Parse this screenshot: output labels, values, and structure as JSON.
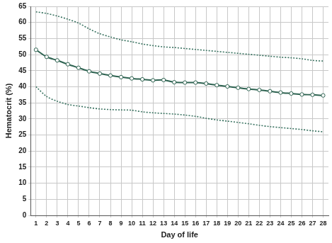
{
  "chart_data": {
    "type": "line",
    "x_label": "Day of life",
    "y_label": "Hematocrit (%)",
    "x": [
      1,
      2,
      3,
      4,
      5,
      6,
      7,
      8,
      9,
      10,
      11,
      12,
      13,
      14,
      15,
      16,
      17,
      18,
      19,
      20,
      21,
      22,
      23,
      24,
      25,
      26,
      27,
      28
    ],
    "series": [
      {
        "color": "#2e6351",
        "marker": "circle",
        "line_style": "solid",
        "values": [
          51.5,
          49.3,
          48.2,
          47.0,
          45.9,
          44.8,
          44.1,
          43.5,
          43.0,
          42.6,
          42.3,
          42.0,
          42.1,
          41.4,
          41.3,
          41.3,
          41.0,
          40.5,
          40.1,
          39.7,
          39.3,
          39.0,
          38.6,
          38.2,
          37.9,
          37.6,
          37.5,
          37.3
        ]
      },
      {
        "color": "#3a7361",
        "marker": "none",
        "line_style": "dotted",
        "values": [
          63.3,
          62.8,
          62.0,
          61.0,
          59.8,
          58.0,
          56.5,
          55.5,
          54.6,
          54.0,
          53.3,
          52.8,
          52.4,
          52.2,
          51.9,
          51.6,
          51.3,
          51.0,
          50.7,
          50.4,
          50.1,
          49.8,
          49.5,
          49.2,
          49.0,
          48.7,
          48.2,
          48.0
        ]
      },
      {
        "color": "#3a7361",
        "marker": "none",
        "line_style": "dotted",
        "values": [
          40.0,
          37.0,
          35.5,
          34.5,
          34.0,
          33.5,
          33.1,
          32.9,
          32.8,
          32.7,
          32.2,
          31.9,
          31.7,
          31.5,
          31.2,
          30.8,
          30.2,
          29.7,
          29.3,
          28.9,
          28.5,
          28.0,
          27.6,
          27.3,
          27.0,
          26.7,
          26.3,
          26.0
        ]
      }
    ],
    "xlim": [
      0.5,
      28.5
    ],
    "xticks": [
      1,
      2,
      3,
      4,
      5,
      6,
      7,
      8,
      9,
      10,
      11,
      12,
      13,
      14,
      15,
      16,
      17,
      18,
      19,
      20,
      21,
      22,
      23,
      24,
      25,
      26,
      27,
      28
    ],
    "ylim": [
      0,
      65
    ],
    "yticks": [
      0,
      5,
      10,
      15,
      20,
      25,
      30,
      35,
      40,
      45,
      50,
      55,
      60,
      65
    ],
    "grid": true
  }
}
